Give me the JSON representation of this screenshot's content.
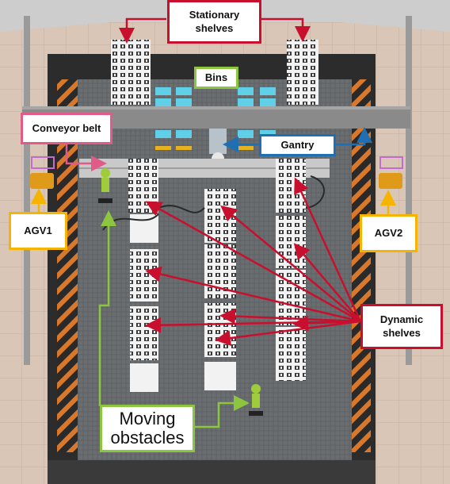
{
  "labels": {
    "stationary_shelves": "Stationary\nshelves",
    "bins": "Bins",
    "conveyor_belt": "Conveyor belt",
    "gantry": "Gantry",
    "agv1": "AGV1",
    "agv2": "AGV2",
    "dynamic_shelves": "Dynamic\nshelves",
    "moving_obstacles": "Moving\nobstacles"
  },
  "colors": {
    "stationary_shelves": "#c8102e",
    "bins": "#8cc63f",
    "conveyor_belt": "#e05a8a",
    "gantry": "#1f6fb2",
    "agv": "#f4b400",
    "dynamic_shelves": "#c8102e",
    "moving_obstacles": "#8cc63f"
  }
}
